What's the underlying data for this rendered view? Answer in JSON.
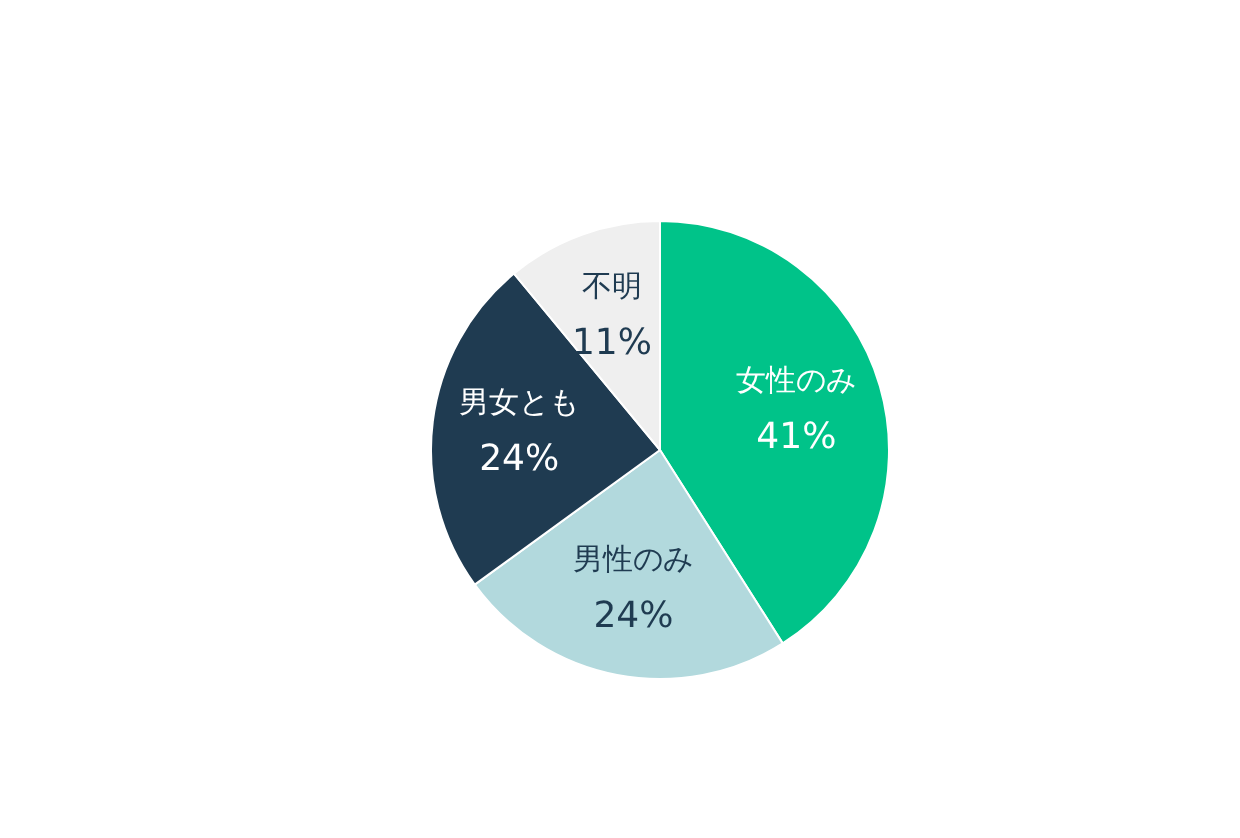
{
  "chart_data": {
    "type": "pie",
    "categories": [
      "女性のみ",
      "男性のみ",
      "男女とも",
      "不明"
    ],
    "values": [
      41,
      24,
      24,
      11
    ],
    "value_labels": [
      "41%",
      "24%",
      "24%",
      "11%"
    ],
    "colors": [
      "#00c389",
      "#b2d9dd",
      "#1f3b51",
      "#efefef"
    ]
  }
}
